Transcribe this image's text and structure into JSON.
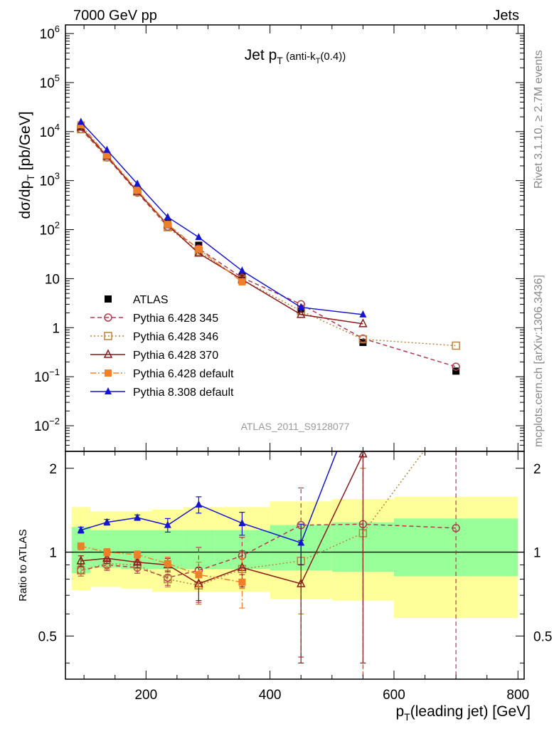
{
  "header": {
    "left": "7000 GeV pp",
    "right": "Jets"
  },
  "title": {
    "main": "Jet p",
    "sub": "T",
    "paren": " (anti-k",
    "paren_sub": "T",
    "paren_end": "(0.4))"
  },
  "side_labels": {
    "rivet": "Rivet 3.1.10, ≥ 2.7M events",
    "mcplots": "mcplots.cern.ch [arXiv:1306.3436]"
  },
  "analysis_id": "ATLAS_2011_S9128077",
  "ylabel_main": {
    "text": "dσ/dp",
    "sub": "T",
    "unit": " [pb/GeV]"
  },
  "ylabel_ratio": "Ratio to ATLAS",
  "xlabel": {
    "text": "p",
    "sub": "T",
    "rest": "(leading jet) [GeV]"
  },
  "chart_data": {
    "type": "scatter",
    "xlim": [
      70,
      810
    ],
    "main_ylim": [
      0.003,
      1500000
    ],
    "main_yscale": "log",
    "ratio_ylim": [
      0.35,
      2.3
    ],
    "ratio_yscale": "log",
    "x_ticks": [
      200,
      400,
      600,
      800
    ],
    "x_tick_labels": [
      "200",
      "400",
      "600",
      "800"
    ],
    "main_y_tick_labels": [
      {
        "value": 1000000,
        "base": "10",
        "exp": "6"
      },
      {
        "value": 100000,
        "base": "10",
        "exp": "5"
      },
      {
        "value": 10000,
        "base": "10",
        "exp": "4"
      },
      {
        "value": 1000,
        "base": "10",
        "exp": "3"
      },
      {
        "value": 100,
        "base": "10",
        "exp": "2"
      },
      {
        "value": 10,
        "base": "10",
        "exp": ""
      },
      {
        "value": 1,
        "base": "1",
        "exp": ""
      },
      {
        "value": 0.1,
        "base": "10",
        "exp": "−1"
      },
      {
        "value": 0.01,
        "base": "10",
        "exp": "−2"
      }
    ],
    "ratio_y_tick_labels": [
      {
        "value": 2,
        "label": "2"
      },
      {
        "value": 1,
        "label": "1"
      },
      {
        "value": 0.5,
        "label": "0.5"
      }
    ],
    "x": [
      95,
      137,
      186,
      235,
      285,
      355,
      450,
      550,
      700
    ],
    "bins": [
      [
        80,
        110
      ],
      [
        110,
        160
      ],
      [
        160,
        210
      ],
      [
        210,
        260
      ],
      [
        260,
        310
      ],
      [
        310,
        400
      ],
      [
        400,
        500
      ],
      [
        500,
        600
      ],
      [
        600,
        800
      ]
    ],
    "bands": {
      "green": [
        [
          0.84,
          1.23
        ],
        [
          0.88,
          1.2
        ],
        [
          0.87,
          1.2
        ],
        [
          0.87,
          1.2
        ],
        [
          0.87,
          1.2
        ],
        [
          0.87,
          1.2
        ],
        [
          0.86,
          1.25
        ],
        [
          0.85,
          1.28
        ],
        [
          0.82,
          1.32
        ]
      ],
      "yellow": [
        [
          0.73,
          1.45
        ],
        [
          0.75,
          1.4
        ],
        [
          0.74,
          1.4
        ],
        [
          0.72,
          1.42
        ],
        [
          0.72,
          1.45
        ],
        [
          0.72,
          1.45
        ],
        [
          0.68,
          1.52
        ],
        [
          0.67,
          1.55
        ],
        [
          0.58,
          1.58
        ]
      ]
    },
    "legend_position": "bottom-left",
    "series": [
      {
        "name": "ATLAS",
        "color": "#000000",
        "marker": "square-filled",
        "line": "none",
        "values": [
          13000,
          3300,
          650,
          140,
          48,
          11,
          2.4,
          0.5,
          0.13
        ]
      },
      {
        "name": "Pythia 6.428 345",
        "color": "#b33a4d",
        "marker": "circle-open",
        "line": "dashed",
        "values": [
          11200,
          2970,
          570,
          115,
          41,
          10.5,
          3.0,
          0.6,
          0.16
        ],
        "ratio": [
          0.86,
          0.9,
          0.88,
          0.81,
          0.86,
          0.97,
          1.25,
          1.26,
          1.22
        ],
        "ratio_err": [
          [
            0.82,
            0.9
          ],
          [
            0.86,
            0.94
          ],
          [
            0.84,
            0.92
          ],
          [
            0.76,
            0.86
          ],
          [
            0.66,
            1.04
          ],
          [
            0.83,
            1.13
          ],
          [
            0.42,
            1.7
          ],
          [
            0.2,
            2.3
          ],
          [
            0.2,
            2.3
          ]
        ]
      },
      {
        "name": "Pythia 6.428 346",
        "color": "#b8863b",
        "marker": "square-open",
        "line": "dotted",
        "values": [
          11200,
          3000,
          590,
          112,
          36,
          9.5,
          2.2,
          0.58,
          0.43
        ],
        "ratio": [
          0.86,
          0.91,
          0.9,
          0.8,
          0.76,
          0.87,
          0.93,
          1.17,
          3.3
        ],
        "ratio_err": [
          [
            0.82,
            0.9
          ],
          [
            0.87,
            0.95
          ],
          [
            0.86,
            0.94
          ],
          [
            0.75,
            0.85
          ],
          [
            0.65,
            0.88
          ],
          [
            0.74,
            1.0
          ],
          [
            0.6,
            1.26
          ],
          [
            0.3,
            2.0
          ],
          [
            2.5,
            4.0
          ]
        ]
      },
      {
        "name": "Pythia 6.428 370",
        "color": "#8b1a1a",
        "marker": "triangle-open",
        "line": "solid",
        "values": [
          12200,
          3150,
          600,
          125,
          33,
          9.6,
          1.85,
          1.2,
          null
        ],
        "ratio": [
          0.93,
          0.95,
          0.92,
          0.9,
          0.77,
          0.88,
          0.77,
          2.25,
          null
        ],
        "ratio_err": [
          [
            0.89,
            0.97
          ],
          [
            0.91,
            0.99
          ],
          [
            0.88,
            0.96
          ],
          [
            0.85,
            0.95
          ],
          [
            0.67,
            0.88
          ],
          [
            0.75,
            1.01
          ],
          [
            0.4,
            1.1
          ],
          [
            0.4,
            2.3
          ],
          null
        ]
      },
      {
        "name": "Pythia 6.428 default",
        "color": "#f07f2a",
        "marker": "square-filled",
        "line": "dashdot",
        "values": [
          13700,
          3300,
          640,
          128,
          40,
          8.6,
          null,
          null,
          null
        ],
        "ratio": [
          1.05,
          1.0,
          0.98,
          0.91,
          0.83,
          0.78,
          null,
          null,
          null
        ],
        "ratio_err": [
          [
            1.02,
            1.08
          ],
          [
            0.97,
            1.03
          ],
          [
            0.95,
            1.01
          ],
          [
            0.86,
            0.96
          ],
          [
            0.75,
            0.92
          ],
          [
            0.63,
            0.95
          ],
          null,
          null,
          null
        ]
      },
      {
        "name": "Pythia 8.308 default",
        "color": "#1414d2",
        "marker": "triangle-filled",
        "line": "solid",
        "values": [
          15700,
          4200,
          860,
          180,
          70,
          14.5,
          2.6,
          1.85,
          null
        ],
        "ratio": [
          1.2,
          1.28,
          1.33,
          1.25,
          1.48,
          1.27,
          1.08,
          4.0,
          null
        ],
        "ratio_err": [
          [
            1.17,
            1.23
          ],
          [
            1.25,
            1.31
          ],
          [
            1.3,
            1.36
          ],
          [
            1.18,
            1.32
          ],
          [
            1.38,
            1.58
          ],
          [
            1.15,
            1.39
          ],
          [
            0.9,
            1.26
          ],
          [
            3.0,
            5.0
          ],
          null
        ]
      }
    ]
  }
}
